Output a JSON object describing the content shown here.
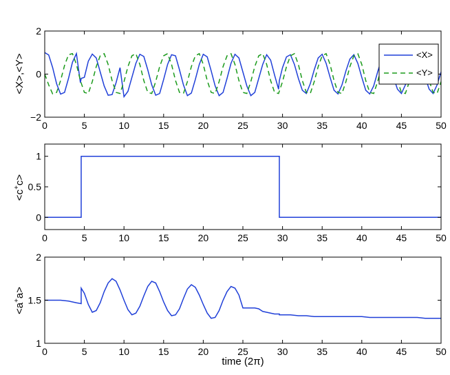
{
  "chart_data": [
    {
      "type": "line",
      "xlim": [
        0,
        50
      ],
      "ylim": [
        -2,
        2
      ],
      "xticks": [
        0,
        5,
        10,
        15,
        20,
        25,
        30,
        35,
        40,
        45,
        50
      ],
      "yticks": [
        -2,
        0,
        2
      ],
      "ylabel": "<X>,<Y>",
      "xlabel": "",
      "legend": "top-right",
      "series": [
        {
          "name": "<X>",
          "style": "solid",
          "color": "#1f3fd8",
          "x": [
            0,
            0.5,
            1,
            1.5,
            2,
            2.5,
            3,
            3.5,
            4,
            4.5,
            4.6,
            5,
            5.5,
            6,
            6.5,
            7,
            7.5,
            8,
            8.5,
            9,
            9.5,
            10,
            10.5,
            11,
            11.5,
            12,
            12.5,
            13,
            13.5,
            14,
            14.5,
            15,
            15.5,
            16,
            16.5,
            17,
            17.5,
            18,
            18.5,
            19,
            19.5,
            20,
            20.5,
            21,
            21.5,
            22,
            22.5,
            23,
            23.5,
            24,
            24.5,
            25,
            25.5,
            26,
            26.5,
            27,
            27.5,
            28,
            28.5,
            29,
            29.5,
            29.6,
            30,
            30.5,
            31,
            31.5,
            32,
            32.5,
            33,
            33.5,
            34,
            34.5,
            35,
            35.5,
            36,
            36.5,
            37,
            37.5,
            38,
            38.5,
            39,
            39.5,
            40,
            40.5,
            41,
            41.5,
            42,
            42.5,
            43,
            43.5,
            44,
            44.5,
            45,
            45.5,
            46,
            46.5,
            47,
            47.5,
            48,
            48.5,
            49,
            49.5,
            50
          ],
          "y": [
            1.0,
            0.89,
            0.3,
            -0.45,
            -0.93,
            -0.85,
            -0.2,
            0.55,
            0.95,
            -0.4,
            -0.2,
            -0.15,
            0.6,
            0.93,
            0.75,
            0.1,
            -0.55,
            -0.98,
            -0.95,
            -0.4,
            0.3,
            -1.05,
            -0.8,
            -0.15,
            0.5,
            0.92,
            0.82,
            0.2,
            -0.5,
            -0.98,
            -0.9,
            -0.25,
            0.45,
            0.9,
            0.85,
            0.2,
            -0.5,
            -1.0,
            -0.88,
            -0.25,
            0.45,
            0.92,
            0.8,
            0.15,
            -0.55,
            -1.0,
            -0.85,
            -0.2,
            0.5,
            0.92,
            0.75,
            0.1,
            -0.55,
            -1.0,
            -0.85,
            -0.2,
            0.45,
            0.9,
            0.65,
            -0.05,
            -0.7,
            -0.3,
            0.3,
            0.8,
            0.9,
            0.45,
            -0.2,
            -0.75,
            -0.9,
            -0.45,
            0.2,
            0.75,
            0.92,
            0.5,
            -0.15,
            -0.75,
            -0.92,
            -0.5,
            0.15,
            0.7,
            0.9,
            0.5,
            -0.15,
            -0.75,
            -0.92,
            -0.55,
            0.1,
            0.7,
            0.9,
            0.5,
            -0.15,
            -0.7,
            -0.9,
            -0.5,
            0.15,
            0.7,
            0.9,
            0.5,
            -0.15,
            -0.7,
            -0.9,
            -0.5,
            0.1
          ]
        },
        {
          "name": "<Y>",
          "style": "dashed",
          "color": "#1a9a1a",
          "x": [
            0,
            0.5,
            1,
            1.5,
            2,
            2.5,
            3,
            3.5,
            4,
            4.5,
            5,
            5.5,
            6,
            6.5,
            7,
            7.5,
            8,
            8.5,
            9,
            9.5,
            10,
            10.5,
            11,
            11.5,
            12,
            12.5,
            13,
            13.5,
            14,
            14.5,
            15,
            15.5,
            16,
            16.5,
            17,
            17.5,
            18,
            18.5,
            19,
            19.5,
            20,
            20.5,
            21,
            21.5,
            22,
            22.5,
            23,
            23.5,
            24,
            24.5,
            25,
            25.5,
            26,
            26.5,
            27,
            27.5,
            28,
            28.5,
            29,
            29.5,
            30,
            30.5,
            31,
            31.5,
            32,
            32.5,
            33,
            33.5,
            34,
            34.5,
            35,
            35.5,
            36,
            36.5,
            37,
            37.5,
            38,
            38.5,
            39,
            39.5,
            40,
            40.5,
            41,
            41.5,
            42,
            42.5,
            43,
            43.5,
            44,
            44.5,
            45,
            45.5,
            46,
            46.5,
            47,
            47.5,
            48,
            48.5,
            49,
            49.5,
            50
          ],
          "y": [
            0,
            -0.5,
            -0.92,
            -0.85,
            -0.3,
            0.4,
            0.9,
            0.95,
            0.45,
            -0.3,
            -0.85,
            -0.9,
            -0.35,
            0.35,
            0.85,
            0.95,
            0.45,
            -0.3,
            -0.85,
            -0.9,
            -0.35,
            0.35,
            0.85,
            0.95,
            0.45,
            -0.3,
            -0.85,
            -0.9,
            -0.35,
            0.35,
            0.85,
            0.95,
            0.45,
            -0.3,
            -0.85,
            -0.9,
            -0.35,
            0.35,
            0.85,
            0.95,
            0.45,
            -0.3,
            -0.85,
            -0.9,
            -0.35,
            0.35,
            0.85,
            0.95,
            0.45,
            -0.3,
            -0.85,
            -0.9,
            -0.35,
            0.35,
            0.85,
            0.95,
            0.45,
            -0.3,
            -0.85,
            -0.9,
            -0.35,
            0.35,
            0.85,
            0.95,
            0.45,
            -0.3,
            -0.85,
            -0.9,
            -0.35,
            0.35,
            0.85,
            0.95,
            0.45,
            -0.3,
            -0.85,
            -0.9,
            -0.35,
            0.35,
            0.85,
            0.95,
            0.45,
            -0.3,
            -0.85,
            -0.9,
            -0.35,
            0.35,
            0.85,
            0.95,
            0.45,
            -0.3,
            -0.85,
            -0.9,
            -0.35,
            0.35,
            0.85,
            0.95,
            0.45,
            -0.3,
            -0.85,
            -0.9,
            -0.35
          ]
        }
      ]
    },
    {
      "type": "line",
      "xlim": [
        0,
        50
      ],
      "ylim": [
        -0.2,
        1.2
      ],
      "xticks": [
        0,
        5,
        10,
        15,
        20,
        25,
        30,
        35,
        40,
        45,
        50
      ],
      "yticks": [
        0,
        0.5,
        1
      ],
      "ylabel": "<c+c>",
      "xlabel": "",
      "series": [
        {
          "name": "",
          "style": "solid",
          "color": "#1f3fd8",
          "x": [
            0,
            4.6,
            4.6,
            29.6,
            29.6,
            50
          ],
          "y": [
            0,
            0,
            1,
            1,
            0,
            0
          ]
        }
      ]
    },
    {
      "type": "line",
      "xlim": [
        0,
        50
      ],
      "ylim": [
        1,
        2
      ],
      "xticks": [
        0,
        5,
        10,
        15,
        20,
        25,
        30,
        35,
        40,
        45,
        50
      ],
      "yticks": [
        1,
        1.5,
        2
      ],
      "ylabel": "<a+a>",
      "xlabel": "time (2π)",
      "series": [
        {
          "name": "",
          "style": "solid",
          "color": "#1f3fd8",
          "x": [
            0,
            1,
            2,
            3,
            4,
            4.6,
            4.6,
            5,
            5.5,
            6,
            6.5,
            7,
            7.5,
            8,
            8.5,
            9,
            9.5,
            10,
            10.5,
            11,
            11.5,
            12,
            12.5,
            13,
            13.5,
            14,
            14.5,
            15,
            15.5,
            16,
            16.5,
            17,
            17.5,
            18,
            18.5,
            19,
            19.5,
            20,
            20.5,
            21,
            21.5,
            22,
            22.5,
            23,
            23.5,
            24,
            24.5,
            25,
            25.5,
            26,
            26.5,
            27,
            27.5,
            28,
            28.5,
            29,
            29.5,
            29.6,
            29.6,
            30,
            31,
            32,
            33,
            34,
            35,
            36,
            37,
            38,
            39,
            40,
            41,
            42,
            43,
            44,
            45,
            46,
            47,
            48,
            49,
            50
          ],
          "y": [
            1.5,
            1.5,
            1.5,
            1.49,
            1.47,
            1.46,
            1.64,
            1.58,
            1.45,
            1.36,
            1.38,
            1.47,
            1.6,
            1.7,
            1.75,
            1.72,
            1.62,
            1.5,
            1.39,
            1.33,
            1.35,
            1.43,
            1.55,
            1.66,
            1.72,
            1.7,
            1.6,
            1.48,
            1.38,
            1.32,
            1.33,
            1.4,
            1.52,
            1.63,
            1.68,
            1.65,
            1.56,
            1.45,
            1.35,
            1.29,
            1.3,
            1.38,
            1.5,
            1.6,
            1.66,
            1.64,
            1.56,
            1.41,
            1.41,
            1.41,
            1.41,
            1.4,
            1.37,
            1.36,
            1.35,
            1.34,
            1.34,
            1.34,
            1.33,
            1.33,
            1.33,
            1.32,
            1.32,
            1.31,
            1.31,
            1.31,
            1.31,
            1.31,
            1.31,
            1.31,
            1.3,
            1.3,
            1.3,
            1.3,
            1.3,
            1.3,
            1.3,
            1.29,
            1.29,
            1.29
          ]
        }
      ]
    }
  ]
}
